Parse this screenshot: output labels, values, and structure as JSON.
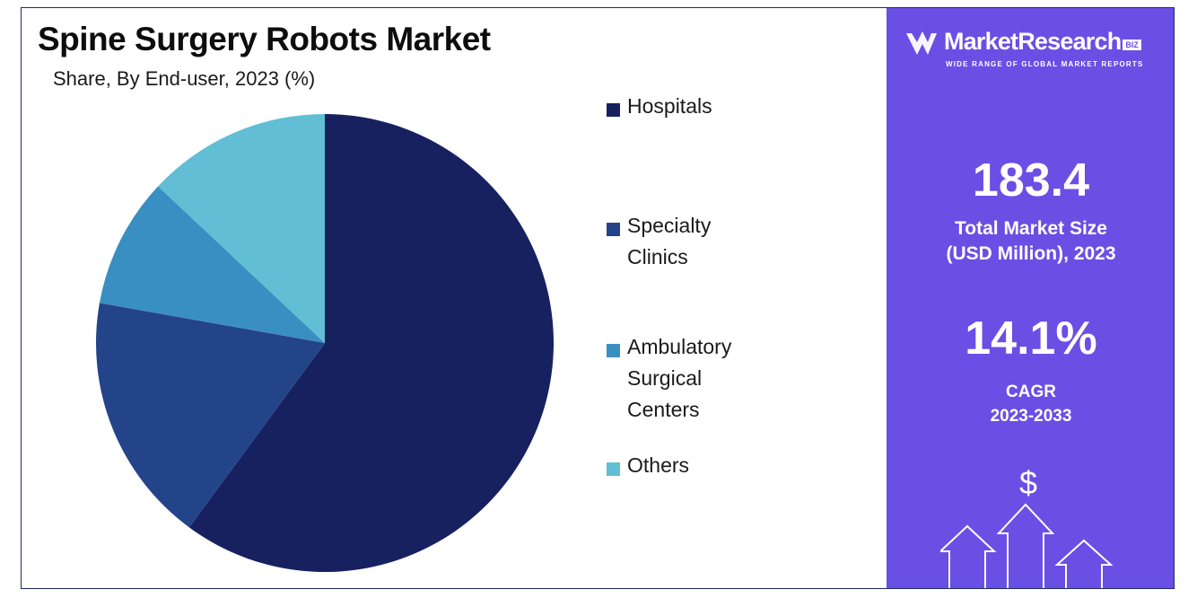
{
  "header": {
    "title": "Spine Surgery Robots Market",
    "subtitle": "Share, By End-user, 2023 (%)"
  },
  "chart_data": {
    "type": "pie",
    "title": "Spine Surgery Robots Market",
    "subtitle": "Share, By End-user, 2023 (%)",
    "categories": [
      "Hospitals",
      "Specialty Clinics",
      "Ambulatory Surgical\nCenters",
      "Others"
    ],
    "values": [
      60.1,
      17.7,
      9.2,
      13.0
    ],
    "colors": [
      "#172160",
      "#24448a",
      "#3a8fc2",
      "#62bed4"
    ],
    "legend_position": "right"
  },
  "side_panel": {
    "brand_name": "MarketResearch",
    "brand_badge": "BIZ",
    "brand_tagline": "WIDE RANGE OF GLOBAL MARKET REPORTS",
    "market_size_value": "183.4",
    "market_size_label": "Total Market Size\n(USD Million), 2023",
    "cagr_value": "14.1%",
    "cagr_label": "CAGR",
    "cagr_period": "2023-2033",
    "currency_symbol": "$",
    "background_color": "#6a4fe4",
    "icons": [
      "logo-icon",
      "growth-arrows-icon"
    ]
  }
}
